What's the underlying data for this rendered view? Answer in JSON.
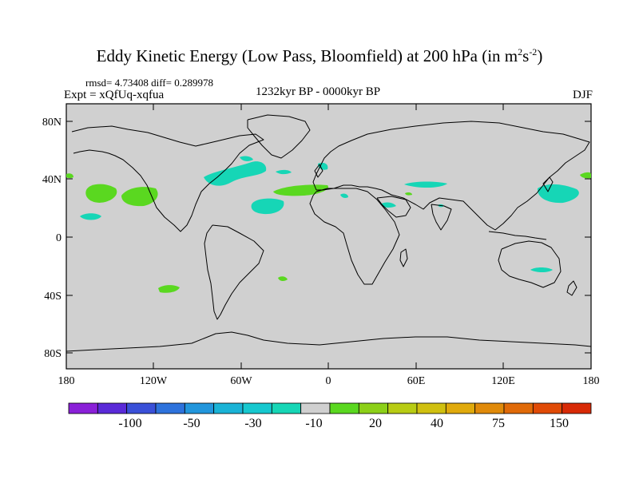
{
  "title": {
    "main": "Eddy Kinetic Energy (Low Pass, Bloomfield) at 200 hPa (in m",
    "sup1": "2",
    "mid": "s",
    "sup2": "-2",
    "end": ")"
  },
  "stats": "rmsd= 4.73408 diff= 0.289978",
  "experiment": "Expt = xQfUq-xqfua",
  "period": "1232kyr BP - 0000kyr BP",
  "season": "DJF",
  "lat_labels": [
    "80N",
    "40N",
    "0",
    "40S",
    "80S"
  ],
  "lon_labels": [
    "180",
    "120W",
    "60W",
    "0",
    "60E",
    "120E",
    "180"
  ],
  "colorbar": {
    "colors": [
      "#8a20d8",
      "#5a2ad8",
      "#3a50d8",
      "#2d72dc",
      "#2296dc",
      "#1ab3d6",
      "#16c8cf",
      "#16d6b6",
      "#d0d0d0",
      "#5ad820",
      "#8cd018",
      "#b8cc14",
      "#d0c010",
      "#e0aa0c",
      "#e08a0a",
      "#e06a08",
      "#e04a06",
      "#d82a06"
    ],
    "labels": [
      "-100",
      "-50",
      "-30",
      "-10",
      "20",
      "40",
      "75",
      "150"
    ]
  },
  "colors": {
    "land_bg": "#d0d0d0",
    "pos": "#5ad820",
    "neg": "#16d6b6"
  }
}
